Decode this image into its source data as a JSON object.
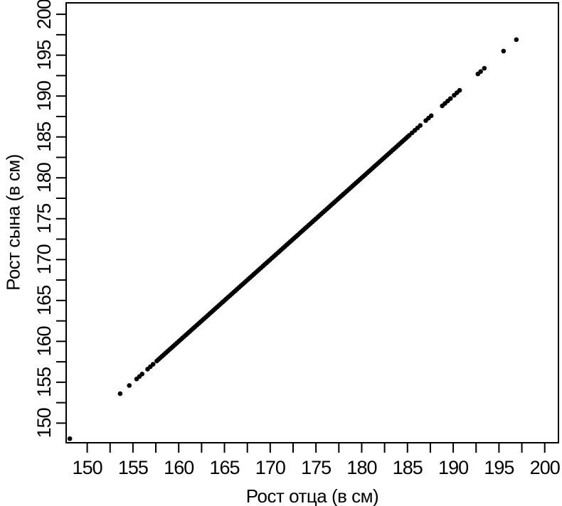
{
  "figure": {
    "background_color": "#ffffff",
    "foreground_color": "#000000"
  },
  "chart_data": {
    "type": "scatter",
    "xlabel": "Рост отца (в см)",
    "ylabel": "Рост сына (в см)",
    "grid": "off",
    "legend": "none",
    "x_axis": {
      "min": 147.7,
      "max": 201.5,
      "labeled_ticks": [
        150,
        155,
        160,
        165,
        170,
        175,
        180,
        185,
        190,
        195,
        200
      ],
      "minor_tick_step": 2.5
    },
    "y_axis": {
      "min": 147.6,
      "max": 201.4,
      "labeled_ticks": [
        150,
        155,
        160,
        165,
        170,
        175,
        180,
        185,
        190,
        195,
        200
      ],
      "minor_tick_step": 2.5
    },
    "marker": {
      "shape": "filled-circle",
      "color": "#000000",
      "radius_px": 3.3
    },
    "y_equals_x": true,
    "points_x": [
      148.1,
      153.6,
      154.6,
      155.4,
      155.7,
      156.0,
      156.6,
      156.9,
      157.2,
      157.6,
      157.8,
      158.0,
      158.2,
      158.4,
      158.6,
      158.8,
      159.0,
      159.2,
      159.4,
      159.6,
      159.8,
      160.0,
      160.2,
      160.4,
      160.6,
      160.8,
      161.0,
      161.2,
      161.4,
      161.6,
      161.8,
      162.0,
      162.2,
      162.4,
      162.6,
      162.8,
      163.0,
      163.2,
      163.4,
      163.6,
      163.8,
      164.0,
      164.2,
      164.4,
      164.6,
      164.8,
      165.0,
      165.2,
      165.4,
      165.6,
      165.8,
      166.0,
      166.2,
      166.4,
      166.6,
      166.8,
      167.0,
      167.2,
      167.4,
      167.6,
      167.8,
      168.0,
      168.2,
      168.4,
      168.6,
      168.8,
      169.0,
      169.2,
      169.4,
      169.6,
      169.8,
      170.0,
      170.2,
      170.4,
      170.6,
      170.8,
      171.0,
      171.2,
      171.4,
      171.6,
      171.8,
      172.0,
      172.2,
      172.4,
      172.6,
      172.8,
      173.0,
      173.2,
      173.4,
      173.6,
      173.8,
      174.0,
      174.2,
      174.4,
      174.6,
      174.8,
      175.0,
      175.2,
      175.4,
      175.6,
      175.8,
      176.0,
      176.2,
      176.4,
      176.6,
      176.8,
      177.0,
      177.2,
      177.4,
      177.6,
      177.8,
      178.0,
      178.2,
      178.4,
      178.6,
      178.8,
      179.0,
      179.2,
      179.4,
      179.6,
      179.8,
      180.0,
      180.2,
      180.4,
      180.6,
      180.8,
      181.0,
      181.2,
      181.4,
      181.6,
      181.8,
      182.0,
      182.2,
      182.4,
      182.6,
      182.8,
      183.0,
      183.2,
      183.4,
      183.6,
      183.8,
      184.0,
      184.2,
      184.4,
      184.6,
      184.8,
      185.0,
      185.2,
      185.5,
      185.8,
      186.1,
      186.4,
      187.0,
      187.3,
      187.6,
      188.8,
      189.1,
      189.4,
      189.7,
      190.1,
      190.4,
      190.7,
      192.7,
      193.0,
      193.4,
      195.5,
      196.9
    ]
  }
}
